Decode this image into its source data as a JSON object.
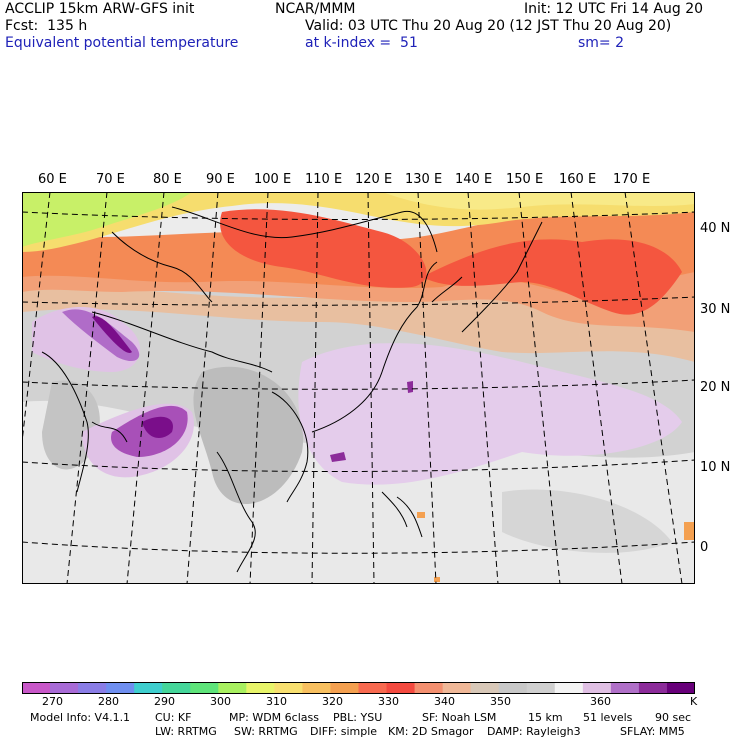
{
  "header": {
    "model": "ACCLIP 15km ARW-GFS init",
    "org": "NCAR/MMM",
    "init": "Init: 12 UTC Fri 14 Aug 20",
    "fcst": "Fcst:  135 h",
    "valid": "Valid: 03 UTC Thu 20 Aug 20 (12 JST Thu 20 Aug 20)",
    "field": "Equivalent potential temperature",
    "level": "at k-index =  51",
    "smooth": "sm= 2"
  },
  "map": {
    "lon_labels": [
      "60 E",
      "70 E",
      "80 E",
      "90 E",
      "100 E",
      "110 E",
      "120 E",
      "130 E",
      "140 E",
      "150 E",
      "160 E",
      "170 E"
    ],
    "lat_labels": [
      "40 N",
      "30 N",
      "20 N",
      "10 N",
      "0"
    ]
  },
  "colorbar": {
    "unit": "K",
    "colors": [
      "#c857c8",
      "#a86bd6",
      "#8a7de6",
      "#6f8ff0",
      "#3fcfcf",
      "#45d69a",
      "#5ee47a",
      "#a8f060",
      "#e8f56a",
      "#f8e070",
      "#f8c060",
      "#f4a050",
      "#f86a50",
      "#f44a40",
      "#f49070",
      "#f0b898",
      "#d8c8b8",
      "#c8c8c8",
      "#d0d0d0",
      "#f4f4f4",
      "#e0c0e4",
      "#b070c8",
      "#8c2c9a",
      "#68007a"
    ],
    "labels": [
      "270",
      "280",
      "290",
      "300",
      "310",
      "320",
      "330",
      "340",
      "350",
      "360"
    ]
  },
  "footer": {
    "line1": [
      "Model Info: V4.1.1",
      "CU: KF",
      "MP: WDM 6class",
      "PBL: YSU",
      "SF: Noah LSM",
      "15 km",
      "51 levels",
      "90 sec"
    ],
    "line2": [
      "LW: RRTMG",
      "SW: RRTMG",
      "DIFF: simple",
      "KM: 2D Smagor",
      "DAMP: Rayleigh3",
      "SFLAY: MM5"
    ]
  }
}
